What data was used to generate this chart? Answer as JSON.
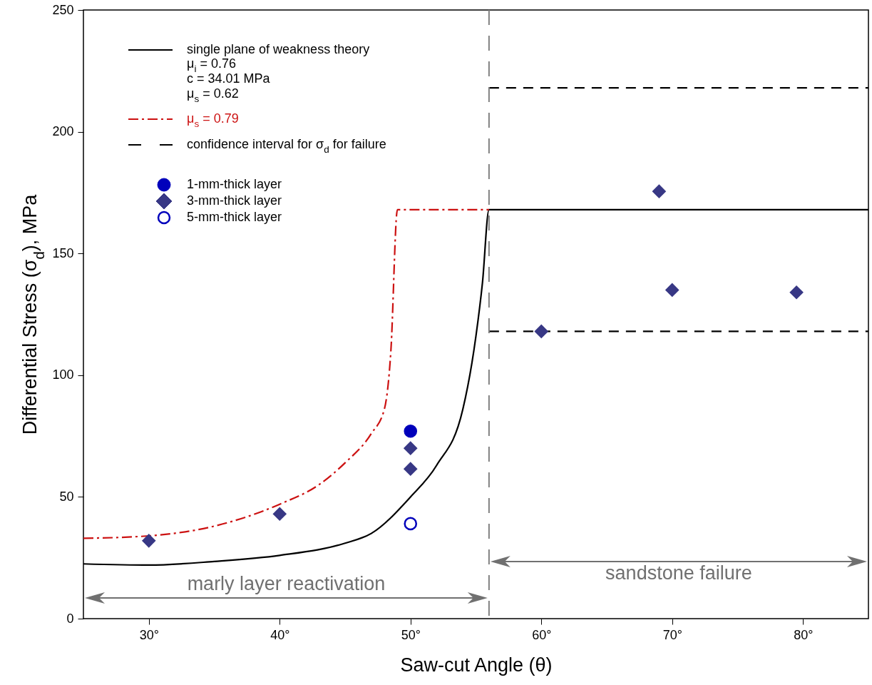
{
  "chart_data": {
    "type": "line",
    "xlabel": "Saw-cut Angle (θ)",
    "ylabel": "Differential Stress (σ$_{d}$), MPa",
    "xlim": [
      25,
      85
    ],
    "ylim": [
      0,
      250
    ],
    "xticks": [
      {
        "value": 30,
        "label": "30°"
      },
      {
        "value": 40,
        "label": "40°"
      },
      {
        "value": 50,
        "label": "50°"
      },
      {
        "value": 60,
        "label": "60°"
      },
      {
        "value": 70,
        "label": "70°"
      },
      {
        "value": 80,
        "label": "80°"
      }
    ],
    "yticks": [
      0,
      50,
      100,
      150,
      200,
      250
    ],
    "grid": false,
    "legend": "top left",
    "series": [
      {
        "name": "single plane of weakness theory",
        "color": "#000000",
        "line_style": "solid",
        "x": [
          25,
          30,
          35,
          40,
          45,
          47,
          50,
          52,
          54,
          55,
          55.5,
          56,
          85
        ],
        "values": [
          22.5,
          22,
          23.5,
          26,
          31,
          35,
          50,
          63,
          86,
          116,
          138,
          168,
          168
        ]
      },
      {
        "name": "μ$_{s}$ = 0.79",
        "color": "#cc1111",
        "line_style": "dashdot",
        "x": [
          25,
          30,
          35,
          40,
          43,
          45,
          47,
          48,
          48.5,
          49,
          56
        ],
        "values": [
          33,
          34,
          38,
          47,
          55,
          64,
          76,
          86,
          110,
          168,
          168
        ]
      },
      {
        "name": "confidence interval for σ$_{d}$ for failure",
        "color": "#000000",
        "line_style": "dashed",
        "x": [
          56,
          85
        ],
        "values": [
          218,
          218
        ]
      },
      {
        "color": "#000000",
        "line_style": "dashed",
        "x": [
          56,
          85
        ],
        "values": [
          118,
          118
        ]
      },
      {
        "name": "1-mm-thick layer",
        "type": "scatter",
        "color": "#0000bb",
        "marker": "circle",
        "x": [
          50
        ],
        "values": [
          77
        ]
      },
      {
        "name": "3-mm-thick layer",
        "type": "scatter",
        "color": "#383885",
        "marker": "diamond",
        "x": [
          30,
          40,
          50,
          50,
          60,
          69,
          70,
          79.5
        ],
        "values": [
          32,
          43,
          70,
          61.5,
          118,
          175.5,
          135,
          134
        ]
      },
      {
        "name": "5-mm-thick layer",
        "type": "scatter",
        "color": "#0000bb",
        "marker": "circle-open",
        "x": [
          50
        ],
        "values": [
          39
        ]
      }
    ],
    "ref_lines": [
      {
        "axis": "x",
        "value": 56,
        "color": "#808080",
        "line_style": "dashed"
      }
    ],
    "annotations": [
      "μ$_{i}$ = 0.76",
      "c = 34.01 MPa",
      "μ$_{s}$ = 0.62",
      "marly layer reactivation",
      "sandstone failure"
    ]
  }
}
